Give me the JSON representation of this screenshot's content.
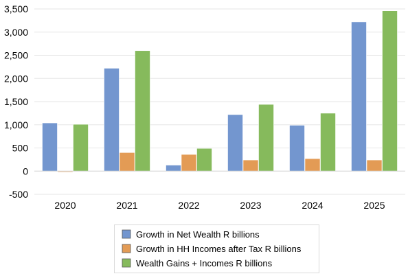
{
  "chart_data": {
    "type": "bar",
    "categories": [
      "2020",
      "2021",
      "2022",
      "2023",
      "2024",
      "2025"
    ],
    "series": [
      {
        "name": "Growth in Net Wealth R billions",
        "color": "#7396CF",
        "values": [
          1040,
          2220,
          130,
          1220,
          990,
          3220
        ]
      },
      {
        "name": "Growth in HH Incomes after Tax R billions",
        "color": "#E39B55",
        "values": [
          -20,
          400,
          360,
          240,
          270,
          240
        ]
      },
      {
        "name": "Wealth Gains + Incomes R billions",
        "color": "#86BA5C",
        "values": [
          1010,
          2600,
          490,
          1440,
          1250,
          3460
        ]
      }
    ],
    "ylim": [
      -500,
      3500
    ],
    "yticks": [
      "-500",
      "0",
      "500",
      "1,000",
      "1,500",
      "2,000",
      "2,500",
      "3,000",
      "3,500"
    ],
    "ytick_values": [
      -500,
      0,
      500,
      1000,
      1500,
      2000,
      2500,
      3000,
      3500
    ],
    "grid": true,
    "legend_position": "bottom",
    "title": "",
    "xlabel": "",
    "ylabel": ""
  }
}
